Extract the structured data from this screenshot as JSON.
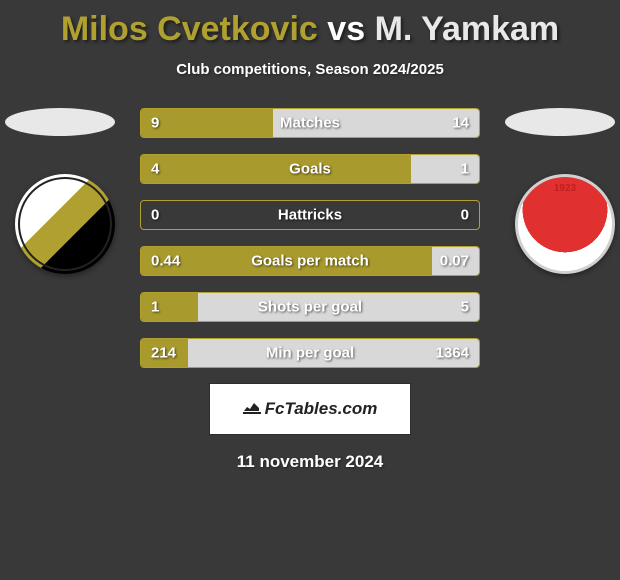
{
  "title": {
    "player1": "Milos Cvetkovic",
    "vs": "vs",
    "player2": "M. Yamkam"
  },
  "subtitle": "Club competitions, Season 2024/2025",
  "colors": {
    "player1": "#a99a2d",
    "player2": "#d8d8d8",
    "border": "#b0a030",
    "background": "#393939"
  },
  "stats": [
    {
      "label": "Matches",
      "left_val": "9",
      "right_val": "14",
      "left_pct": 39,
      "right_pct": 61
    },
    {
      "label": "Goals",
      "left_val": "4",
      "right_val": "1",
      "left_pct": 80,
      "right_pct": 20
    },
    {
      "label": "Hattricks",
      "left_val": "0",
      "right_val": "0",
      "left_pct": 0,
      "right_pct": 0
    },
    {
      "label": "Goals per match",
      "left_val": "0.44",
      "right_val": "0.07",
      "left_pct": 86,
      "right_pct": 14
    },
    {
      "label": "Shots per goal",
      "left_val": "1",
      "right_val": "5",
      "left_pct": 17,
      "right_pct": 83
    },
    {
      "label": "Min per goal",
      "left_val": "214",
      "right_val": "1364",
      "left_pct": 14,
      "right_pct": 86
    }
  ],
  "footer_brand": "FcTables.com",
  "date": "11 november 2024"
}
